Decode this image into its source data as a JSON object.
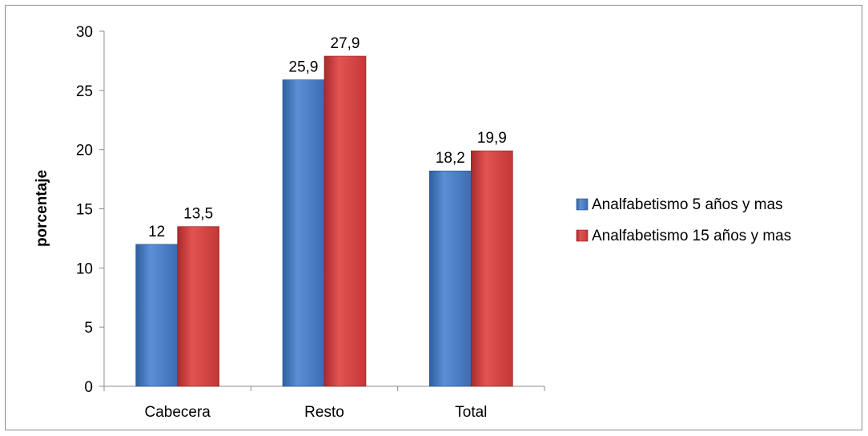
{
  "chart_data": {
    "type": "bar",
    "categories": [
      "Cabecera",
      "Resto",
      "Total"
    ],
    "series": [
      {
        "name": "Analfabetismo 5 años y mas",
        "values": [
          12,
          25.9,
          18.2
        ],
        "labels": [
          "12",
          "25,9",
          "18,2"
        ],
        "color": "#4a7fc9"
      },
      {
        "name": "Analfabetismo 15 años y mas",
        "values": [
          13.5,
          27.9,
          19.9
        ],
        "labels": [
          "13,5",
          "27,9",
          "19,9"
        ],
        "color": "#d94140"
      }
    ],
    "ylabel": "porcentaje",
    "ylim": [
      0,
      30
    ],
    "yticks": [
      "0",
      "5",
      "10",
      "15",
      "20",
      "25",
      "30"
    ],
    "grid": false,
    "legend_position": "right"
  }
}
